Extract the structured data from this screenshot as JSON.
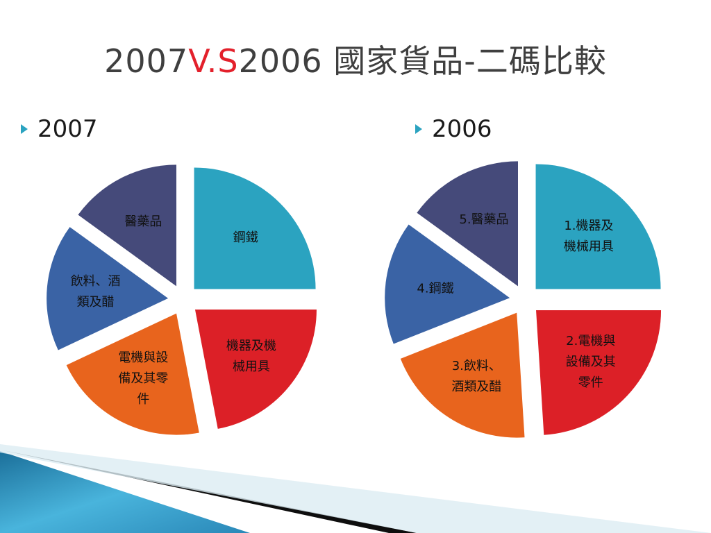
{
  "title": {
    "part1": "2007",
    "accent": "V.S",
    "part2": "2006 國家貨品-二碼比較"
  },
  "colors": {
    "teal": "#2ba3c0",
    "red": "#dc2027",
    "orange": "#e8641d",
    "blue": "#3a63a5",
    "navy": "#454a7a"
  },
  "chart_data": [
    {
      "type": "pie",
      "bullet": "2007",
      "slices": [
        {
          "lines": [
            "鋼鐵"
          ],
          "value": 25,
          "color": "#2ba3c0"
        },
        {
          "lines": [
            "機器及機",
            "械用具"
          ],
          "value": 22,
          "color": "#dc2027"
        },
        {
          "lines": [
            "電機與設",
            "備及其零",
            "件"
          ],
          "value": 21,
          "color": "#e8641d"
        },
        {
          "lines": [
            "飲料、酒",
            "類及醋"
          ],
          "value": 17,
          "color": "#3a63a5"
        },
        {
          "lines": [
            "醫藥品"
          ],
          "value": 15,
          "color": "#454a7a"
        }
      ]
    },
    {
      "type": "pie",
      "bullet": "2006",
      "slices": [
        {
          "lines": [
            "1.機器及",
            "機械用具"
          ],
          "value": 25,
          "color": "#2ba3c0"
        },
        {
          "lines": [
            "2.電機與",
            "設備及其",
            "零件"
          ],
          "value": 24,
          "color": "#dc2027"
        },
        {
          "lines": [
            "3.飲料、",
            "酒類及醋"
          ],
          "value": 20,
          "color": "#e8641d"
        },
        {
          "lines": [
            "4.鋼鐵"
          ],
          "value": 16,
          "color": "#3a63a5"
        },
        {
          "lines": [
            "5.醫藥品"
          ],
          "value": 15,
          "color": "#454a7a"
        }
      ]
    }
  ]
}
